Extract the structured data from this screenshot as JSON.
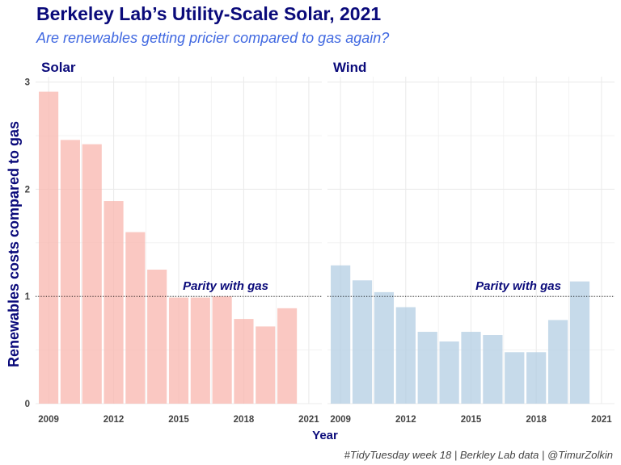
{
  "title": "Berkeley Lab’s Utility-Scale Solar, 2021",
  "subtitle": "Are renewables getting pricier compared to gas again?",
  "caption": "#TidyTuesday week 18 | Berkley Lab data | @TimurZolkin",
  "colors": {
    "title": "#0a0a7a",
    "subtitle": "#4169e1",
    "solar_fill": "#f8b5ad",
    "wind_fill": "#b3cde3",
    "annotation": "#0a0a7a",
    "grid": "#ebebeb"
  },
  "chart_data": {
    "type": "bar",
    "xlabel": "Year",
    "ylabel": "Renewables costs compared to gas",
    "ylim": [
      0,
      3.05
    ],
    "xlim": [
      2008.4,
      2021.6
    ],
    "x_ticks": [
      2009,
      2012,
      2015,
      2018,
      2021
    ],
    "y_ticks": [
      0,
      1,
      2,
      3
    ],
    "grid": true,
    "reference_line": {
      "y": 1,
      "label": "Parity with gas",
      "style": "dotted"
    },
    "panels": [
      {
        "name": "Solar",
        "x": [
          2009,
          2010,
          2011,
          2012,
          2013,
          2014,
          2015,
          2016,
          2017,
          2018,
          2019,
          2020
        ],
        "values": [
          2.91,
          2.46,
          2.42,
          1.89,
          1.6,
          1.25,
          0.99,
          0.99,
          1.0,
          0.79,
          0.72,
          0.89
        ]
      },
      {
        "name": "Wind",
        "x": [
          2009,
          2010,
          2011,
          2012,
          2013,
          2014,
          2015,
          2016,
          2017,
          2018,
          2019,
          2020
        ],
        "values": [
          1.29,
          1.15,
          1.04,
          0.9,
          0.67,
          0.58,
          0.67,
          0.64,
          0.48,
          0.48,
          0.78,
          1.14
        ]
      }
    ]
  }
}
